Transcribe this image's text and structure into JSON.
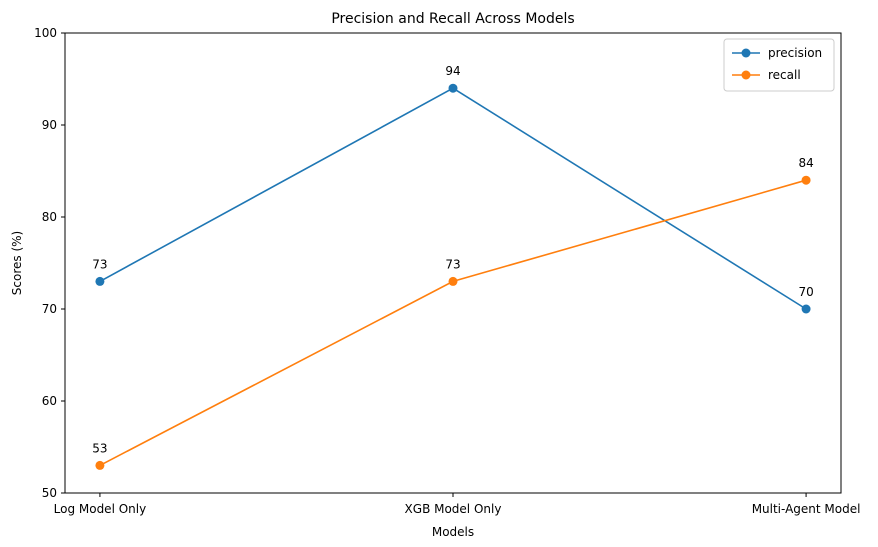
{
  "chart_data": {
    "type": "line",
    "title": "Precision and Recall Across Models",
    "xlabel": "Models",
    "ylabel": "Scores (%)",
    "categories": [
      "Log Model Only",
      "XGB Model Only",
      "Multi-Agent Model"
    ],
    "ylim": [
      50,
      100
    ],
    "yticks": [
      50,
      60,
      70,
      80,
      90,
      100
    ],
    "grid": false,
    "legend_position": "top-right",
    "series": [
      {
        "name": "precision",
        "values": [
          73,
          94,
          70
        ],
        "labels": [
          "73",
          "94",
          "70"
        ],
        "color": "#1f77b4",
        "marker": "circle"
      },
      {
        "name": "recall",
        "values": [
          53,
          73,
          84
        ],
        "labels": [
          "53",
          "73",
          "84"
        ],
        "color": "#ff7f0e",
        "marker": "circle"
      }
    ]
  }
}
